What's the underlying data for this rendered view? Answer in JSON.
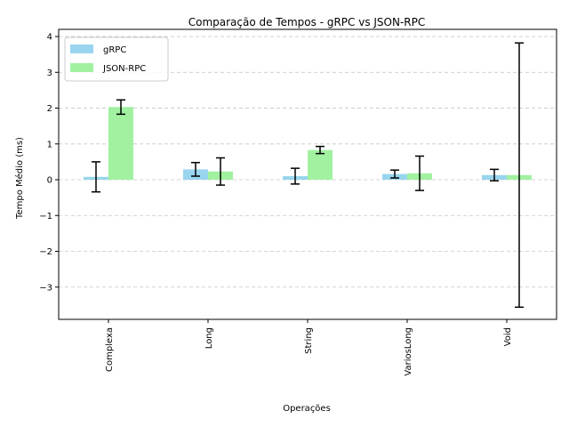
{
  "chart_data": {
    "type": "bar",
    "title": "Comparação de Tempos - gRPC vs JSON-RPC",
    "xlabel": "Operações",
    "ylabel": "Tempo Médio (ms)",
    "categories": [
      "Complexa",
      "Long",
      "String",
      "VariosLong",
      "Void"
    ],
    "series": [
      {
        "name": "gRPC",
        "color": "#87CEEB",
        "values": [
          0.08,
          0.29,
          0.1,
          0.16,
          0.13
        ],
        "errors": [
          0.42,
          0.19,
          0.22,
          0.11,
          0.16
        ]
      },
      {
        "name": "JSON-RPC",
        "color": "#90EE90",
        "values": [
          2.03,
          0.23,
          0.83,
          0.18,
          0.13
        ],
        "errors": [
          0.2,
          0.38,
          0.1,
          0.48,
          3.69
        ]
      }
    ],
    "ylim": [
      -3.9,
      4.2
    ],
    "yticks": [
      4,
      3,
      2,
      1,
      0,
      -1,
      -2,
      -3
    ],
    "ytick_labels": [
      "4",
      "3",
      "2",
      "1",
      "0",
      "−1",
      "−2",
      "−3"
    ],
    "grid": "y-dashed",
    "legend_position": "top-left"
  }
}
